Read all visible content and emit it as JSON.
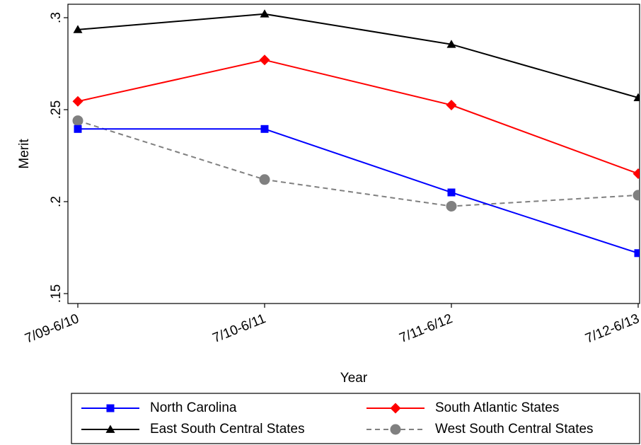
{
  "chart_data": {
    "type": "line",
    "xlabel": "Year",
    "ylabel": "Merit",
    "ylim": [
      0.15,
      0.3
    ],
    "yticks": [
      0.15,
      0.2,
      0.25,
      0.3
    ],
    "ytick_labels": [
      ".15",
      ".2",
      ".25",
      ".3"
    ],
    "categories": [
      "7/09-6/10",
      "7/10-6/11",
      "7/11-6/12",
      "7/12-6/13"
    ],
    "grid": false,
    "legend_position": "bottom",
    "series": [
      {
        "name": "North Carolina",
        "values": [
          0.2395,
          0.2395,
          0.205,
          0.172
        ],
        "color": "#0000ff",
        "marker": "square",
        "dash": "solid"
      },
      {
        "name": "South Atlantic States",
        "values": [
          0.2545,
          0.277,
          0.2525,
          0.2152
        ],
        "color": "#ff0000",
        "marker": "diamond",
        "dash": "solid"
      },
      {
        "name": "East South Central States",
        "values": [
          0.2935,
          0.302,
          0.2855,
          0.2565
        ],
        "color": "#000000",
        "marker": "triangle",
        "dash": "solid"
      },
      {
        "name": "West South Central States",
        "values": [
          0.244,
          0.212,
          0.1975,
          0.2035
        ],
        "color": "#808080",
        "marker": "circle",
        "dash": "dashed"
      }
    ]
  }
}
